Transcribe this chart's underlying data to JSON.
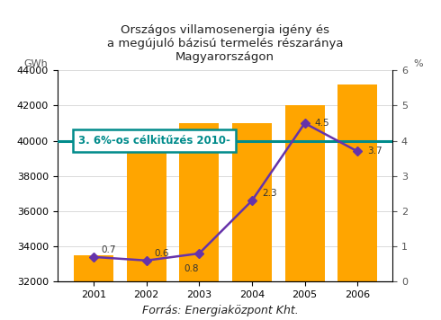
{
  "title": "Országos villamosenergia igény és\na megújuló bázisú termelés részaránya\nMagyarországon",
  "years": [
    2001,
    2002,
    2003,
    2004,
    2005,
    2006
  ],
  "bar_values": [
    33500,
    40400,
    41000,
    41000,
    42000,
    43200
  ],
  "line_values": [
    0.7,
    0.6,
    0.8,
    2.3,
    4.5,
    3.7
  ],
  "line_labels": [
    "0.7",
    "0.6",
    "0.8",
    "2.3",
    "4.5",
    "3.7"
  ],
  "bar_color": "#FFA500",
  "line_color": "#6633AA",
  "marker_color": "#6633AA",
  "target_line_value": 4.0,
  "target_line_color": "#008B8B",
  "target_line_label": "3. 6%-os célkitűzés 2010-",
  "ylabel_left": "GWh",
  "ylabel_right": "%",
  "ylim_left": [
    32000,
    44000
  ],
  "ylim_right": [
    0,
    6
  ],
  "yticks_left": [
    32000,
    34000,
    36000,
    38000,
    40000,
    42000,
    44000
  ],
  "yticks_right": [
    0,
    1,
    2,
    3,
    4,
    5,
    6
  ],
  "source_text": "Forrás: Energiaközpont Kht.",
  "background_color": "#ffffff",
  "title_fontsize": 9.5,
  "tick_fontsize": 8,
  "annotation_fontsize": 7.5
}
